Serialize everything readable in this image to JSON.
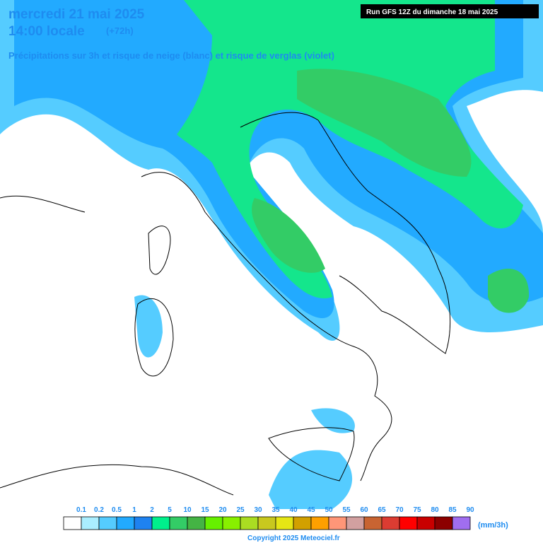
{
  "header": {
    "date": "mercredi 21 mai 2025",
    "time": "14:00 locale",
    "lead": "(+72h)",
    "subtitle": "Précipitations sur 3h et risque de neige (blanc) et risque de verglas (violet)",
    "run": "Run GFS 12Z du dimanche 18 mai 2025"
  },
  "legend": {
    "labels": [
      0.1,
      0.2,
      0.5,
      1,
      2,
      5,
      10,
      15,
      20,
      25,
      30,
      35,
      40,
      45,
      50,
      55,
      60,
      65,
      70,
      75,
      80,
      85,
      90
    ],
    "colors": [
      "#ffffff",
      "#aaeeff",
      "#55ccff",
      "#22aaff",
      "#1e82f0",
      "#00f08c",
      "#33cc66",
      "#44b444",
      "#66f000",
      "#88f000",
      "#aadd22",
      "#c8c81e",
      "#e6e614",
      "#d2a000",
      "#ffa000",
      "#ff9678",
      "#d2a0a0",
      "#c86432",
      "#dc3c32",
      "#ff0000",
      "#c80000",
      "#8c0000",
      "#a06ef0"
    ],
    "unit": "(mm/3h)"
  },
  "footer": {
    "copyright": "Copyright 2025 Meteociel.fr"
  }
}
